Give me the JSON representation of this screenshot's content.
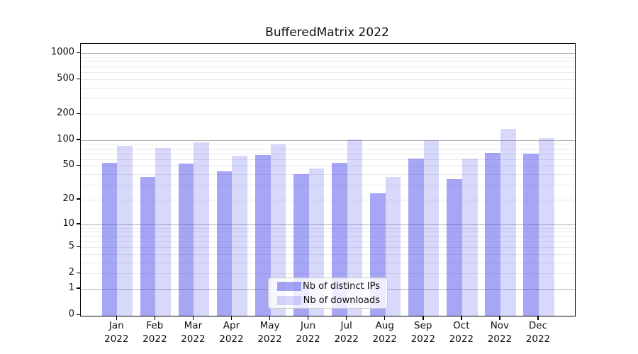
{
  "title": "BufferedMatrix 2022",
  "colors": {
    "distinct_ips": "rgba(70,70,235,0.48)",
    "downloads": "rgba(70,70,235,0.21)",
    "grid_major": "#b3b3b3",
    "grid_minor": "#e9e9ef",
    "spine": "#000000"
  },
  "legend": {
    "items": [
      {
        "label": "Nb of distinct IPs",
        "series_key": "distinct_ips"
      },
      {
        "label": "Nb of downloads",
        "series_key": "downloads"
      }
    ]
  },
  "y_axis": {
    "tick_labels": [
      "1000",
      "500",
      "200",
      "100",
      "50",
      "20",
      "10",
      "5",
      "2",
      "1",
      "0"
    ],
    "tick_values": [
      1000,
      500,
      200,
      100,
      50,
      20,
      10,
      5,
      2,
      1,
      0
    ]
  },
  "x_axis": {
    "months": [
      {
        "month": "Jan",
        "year": "2022"
      },
      {
        "month": "Feb",
        "year": "2022"
      },
      {
        "month": "Mar",
        "year": "2022"
      },
      {
        "month": "Apr",
        "year": "2022"
      },
      {
        "month": "May",
        "year": "2022"
      },
      {
        "month": "Jun",
        "year": "2022"
      },
      {
        "month": "Jul",
        "year": "2022"
      },
      {
        "month": "Aug",
        "year": "2022"
      },
      {
        "month": "Sep",
        "year": "2022"
      },
      {
        "month": "Oct",
        "year": "2022"
      },
      {
        "month": "Nov",
        "year": "2022"
      },
      {
        "month": "Dec",
        "year": "2022"
      }
    ]
  },
  "chart_data": {
    "type": "bar",
    "title": "BufferedMatrix 2022",
    "categories": [
      "Jan 2022",
      "Feb 2022",
      "Mar 2022",
      "Apr 2022",
      "May 2022",
      "Jun 2022",
      "Jul 2022",
      "Aug 2022",
      "Sep 2022",
      "Oct 2022",
      "Nov 2022",
      "Dec 2022"
    ],
    "series": [
      {
        "name": "Nb of distinct IPs",
        "key": "distinct_ips",
        "values": [
          54,
          37,
          53,
          43,
          67,
          40,
          54,
          24,
          61,
          35,
          71,
          70
        ]
      },
      {
        "name": "Nb of downloads",
        "key": "downloads",
        "values": [
          85,
          81,
          95,
          66,
          89,
          47,
          102,
          37,
          100,
          61,
          135,
          105
        ]
      }
    ],
    "xlabel": "",
    "ylabel": "",
    "y_scale": "log10(1+x)",
    "y_ticks": [
      0,
      1,
      2,
      5,
      10,
      20,
      50,
      100,
      200,
      500,
      1000
    ],
    "ylim_top": 1400,
    "grid": true,
    "legend_position": "lower center"
  }
}
